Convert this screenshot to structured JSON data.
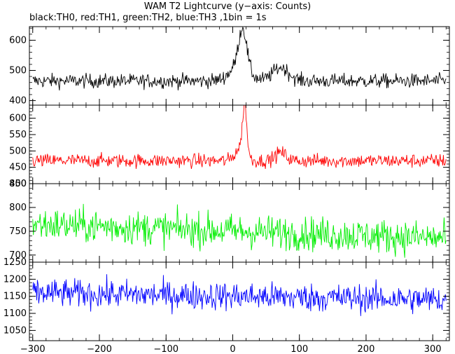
{
  "chart_data": {
    "type": "line",
    "title": "WAM T2 Lightcurve (y−axis: Counts)",
    "subtitle": "black:TH0, red:TH1, green:TH2, blue:TH3 ,1bin = 1s",
    "xlim": [
      -305,
      325
    ],
    "xticks": [
      -300,
      -200,
      -100,
      0,
      100,
      200,
      300
    ],
    "xtick_labels": [
      "−300",
      "−200",
      "−100",
      "0",
      "100",
      "200",
      "300"
    ],
    "bin_seconds": 1,
    "panels": [
      {
        "series": "TH0",
        "color": "#000000",
        "ylim": [
          385,
          645
        ],
        "yticks": [
          400,
          500,
          600
        ],
        "baseline": 465,
        "noise": 20,
        "features": [
          {
            "center": 15,
            "height": 130,
            "width": 6
          },
          {
            "center": 10,
            "height": 50,
            "width": 14
          },
          {
            "center": 72,
            "height": 45,
            "width": 12
          }
        ]
      },
      {
        "series": "TH1",
        "color": "#ff0000",
        "ylim": [
          400,
          640
        ],
        "yticks": [
          400,
          450,
          500,
          550,
          600
        ],
        "baseline": 470,
        "noise": 18,
        "features": [
          {
            "center": 18,
            "height": 150,
            "width": 3
          },
          {
            "center": 12,
            "height": 40,
            "width": 8
          },
          {
            "center": 72,
            "height": 25,
            "width": 8
          }
        ]
      },
      {
        "series": "TH2",
        "color": "#00ee00",
        "ylim": [
          685,
          850
        ],
        "yticks": [
          700,
          750,
          800,
          850
        ],
        "baseline_start": 765,
        "baseline_end": 735,
        "noise": 30,
        "features": []
      },
      {
        "series": "TH3",
        "color": "#0000ff",
        "ylim": [
          1020,
          1250
        ],
        "yticks": [
          1050,
          1100,
          1150,
          1200,
          1250
        ],
        "baseline_start": 1160,
        "baseline_end": 1140,
        "noise": 35,
        "features": []
      }
    ]
  }
}
